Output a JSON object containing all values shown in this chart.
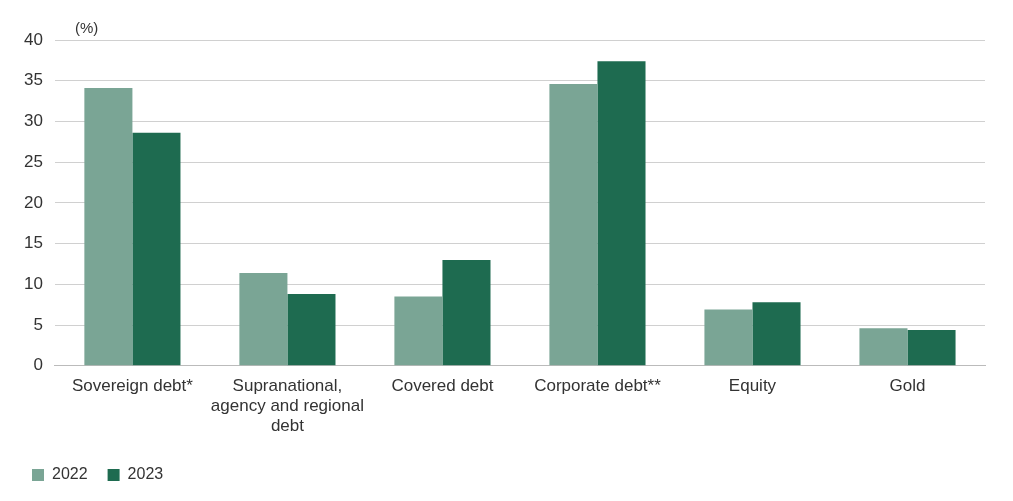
{
  "chart_data": {
    "type": "bar",
    "ylabel": "(%)",
    "categories": [
      "Sovereign debt*",
      "Supranational, agency and regional debt",
      "Covered debt",
      "Corporate debt**",
      "Equity",
      "Gold"
    ],
    "series": [
      {
        "name": "2022",
        "color": "#7aa595",
        "values": [
          34.1,
          11.4,
          8.5,
          34.6,
          6.9,
          4.6
        ]
      },
      {
        "name": "2023",
        "color": "#1e6b50",
        "values": [
          28.6,
          8.8,
          13.0,
          37.4,
          7.8,
          4.4
        ]
      }
    ],
    "ylim": [
      0,
      40
    ],
    "yticks": [
      0,
      5,
      10,
      15,
      20,
      25,
      30,
      35,
      40
    ],
    "grid": "y",
    "legend": "bottom left"
  }
}
